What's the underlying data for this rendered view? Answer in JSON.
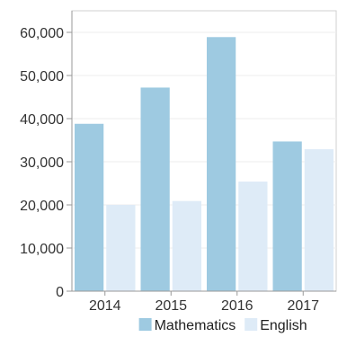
{
  "chart_data": {
    "type": "bar",
    "categories": [
      "2014",
      "2015",
      "2016",
      "2017"
    ],
    "series": [
      {
        "name": "Mathematics",
        "values": [
          38800,
          47200,
          58900,
          34700
        ],
        "color": "#9ecae1"
      },
      {
        "name": "English",
        "values": [
          20000,
          20900,
          25400,
          32900
        ],
        "color": "#deebf7"
      }
    ],
    "y_ticks": [
      "0",
      "10,000",
      "20,000",
      "30,000",
      "40,000",
      "50,000",
      "60,000"
    ],
    "ylim": [
      0,
      65000
    ],
    "grid": true,
    "legend_position": "bottom",
    "title": "",
    "xlabel": "",
    "ylabel": ""
  }
}
